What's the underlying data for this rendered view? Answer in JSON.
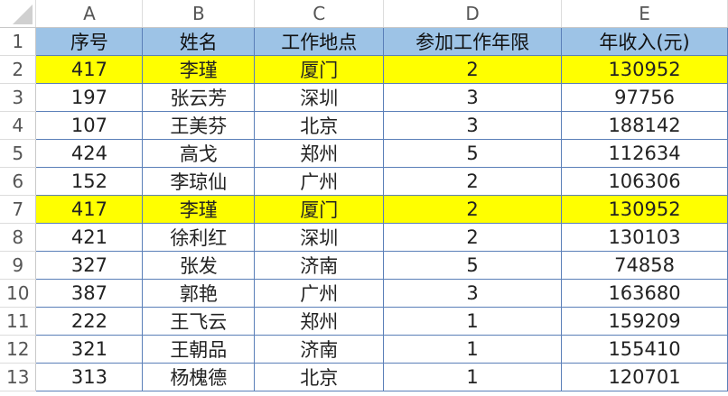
{
  "columns": [
    "A",
    "B",
    "C",
    "D",
    "E"
  ],
  "header_row": [
    "序号",
    "姓名",
    "工作地点",
    "参加工作年限",
    "年收入(元)"
  ],
  "rows": [
    {
      "n": "2",
      "highlight": true,
      "cells": [
        "417",
        "李瑾",
        "厦门",
        "2",
        "130952"
      ]
    },
    {
      "n": "3",
      "highlight": false,
      "cells": [
        "197",
        "张云芳",
        "深圳",
        "3",
        "97756"
      ]
    },
    {
      "n": "4",
      "highlight": false,
      "cells": [
        "107",
        "王美芬",
        "北京",
        "3",
        "188142"
      ]
    },
    {
      "n": "5",
      "highlight": false,
      "cells": [
        "424",
        "高戈",
        "郑州",
        "5",
        "112634"
      ]
    },
    {
      "n": "6",
      "highlight": false,
      "cells": [
        "152",
        "李琼仙",
        "广州",
        "2",
        "106306"
      ]
    },
    {
      "n": "7",
      "highlight": true,
      "cells": [
        "417",
        "李瑾",
        "厦门",
        "2",
        "130952"
      ]
    },
    {
      "n": "8",
      "highlight": false,
      "cells": [
        "421",
        "徐利红",
        "深圳",
        "2",
        "130103"
      ]
    },
    {
      "n": "9",
      "highlight": false,
      "cells": [
        "327",
        "张发",
        "济南",
        "5",
        "74858"
      ]
    },
    {
      "n": "10",
      "highlight": false,
      "cells": [
        "387",
        "郭艳",
        "广州",
        "3",
        "163680"
      ]
    },
    {
      "n": "11",
      "highlight": false,
      "cells": [
        "222",
        "王飞云",
        "郑州",
        "1",
        "159209"
      ]
    },
    {
      "n": "12",
      "highlight": false,
      "cells": [
        "321",
        "王朝品",
        "济南",
        "1",
        "155410"
      ]
    },
    {
      "n": "13",
      "highlight": false,
      "cells": [
        "313",
        "杨槐德",
        "北京",
        "1",
        "120701"
      ]
    }
  ],
  "header_row_number": "1",
  "colors": {
    "header_fill": "#9dc3e6",
    "highlight_fill": "#ffff00",
    "border": "#5a7fb8"
  }
}
